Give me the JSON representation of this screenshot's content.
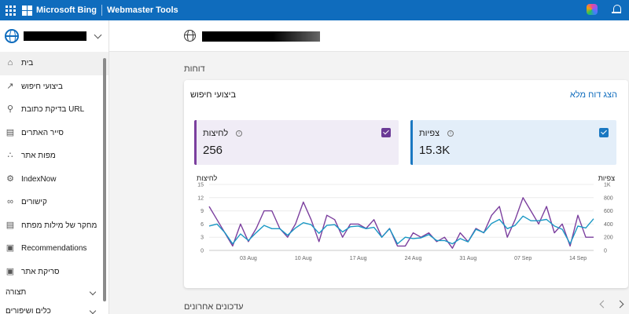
{
  "topbar": {
    "brand": "Microsoft Bing",
    "product": "Webmaster Tools"
  },
  "sidebar": {
    "items": [
      {
        "label": "בית",
        "icon": "home-icon"
      },
      {
        "label": "ביצועי חיפוש",
        "icon": "trend-icon"
      },
      {
        "label": "בדיקת כתובת URL",
        "icon": "search-icon"
      },
      {
        "label": "סייר האתרים",
        "icon": "document-icon"
      },
      {
        "label": "מפות אתר",
        "icon": "sitemap-icon"
      },
      {
        "label": "IndexNow",
        "icon": "gear-icon"
      },
      {
        "label": "קישורים",
        "icon": "link-icon"
      },
      {
        "label": "מחקר של מילות מפתח",
        "icon": "document-icon"
      },
      {
        "label": "Recommendations",
        "icon": "clipboard-icon"
      },
      {
        "label": "סריקת אתר",
        "icon": "clipboard-icon"
      }
    ],
    "groups": [
      {
        "label": "תצורה"
      },
      {
        "label": "כלים ושיפורים"
      }
    ]
  },
  "main": {
    "section_title": "דוחות",
    "card": {
      "title": "ביצועי חיפוש",
      "link": "הצג דוח מלא",
      "clicks": {
        "label": "לחיצות",
        "value": "256",
        "color": "#7b3f9e"
      },
      "impressions": {
        "label": "צפיות",
        "value": "15.3K",
        "color": "#1a78c2"
      }
    },
    "recent_title": "עדכונים אחרונים"
  },
  "chart_data": {
    "type": "line",
    "y_left_label": "לחיצות",
    "y_right_label": "צפיות",
    "y_left_ticks": [
      "15",
      "12",
      "9",
      "6",
      "3",
      "0"
    ],
    "y_right_ticks": [
      "1K",
      "800",
      "600",
      "400",
      "200",
      "0"
    ],
    "ylim_left": [
      0,
      15
    ],
    "ylim_right": [
      0,
      1000
    ],
    "x_ticks": [
      {
        "label": "03 Aug",
        "index": 5
      },
      {
        "label": "10 Aug",
        "index": 12
      },
      {
        "label": "17 Aug",
        "index": 19
      },
      {
        "label": "24 Aug",
        "index": 26
      },
      {
        "label": "31 Aug",
        "index": 33
      },
      {
        "label": "07 Sep",
        "index": 40
      },
      {
        "label": "14 Sep",
        "index": 47
      }
    ],
    "series": [
      {
        "name": "לחיצות",
        "axis": "left",
        "color": "#7b3f9e",
        "values": [
          10,
          7,
          4,
          1,
          6,
          2,
          5,
          9,
          9,
          5,
          3,
          6,
          11,
          7,
          2,
          8,
          7,
          3,
          6,
          6,
          5,
          7,
          3,
          5,
          1,
          1,
          4,
          3,
          4,
          2,
          3,
          0.5,
          4,
          2,
          5,
          4,
          8,
          10,
          3,
          7,
          12,
          9,
          6,
          10,
          4,
          6,
          1,
          8,
          3,
          3
        ]
      },
      {
        "name": "צפיות",
        "axis": "right",
        "color": "#1a98c4",
        "values": [
          370,
          400,
          270,
          100,
          250,
          150,
          270,
          380,
          330,
          330,
          230,
          340,
          420,
          390,
          260,
          380,
          390,
          280,
          360,
          370,
          330,
          350,
          200,
          330,
          100,
          200,
          180,
          190,
          240,
          150,
          150,
          100,
          180,
          130,
          320,
          270,
          410,
          470,
          330,
          380,
          520,
          450,
          450,
          470,
          370,
          320,
          100,
          370,
          340,
          480
        ]
      }
    ]
  }
}
